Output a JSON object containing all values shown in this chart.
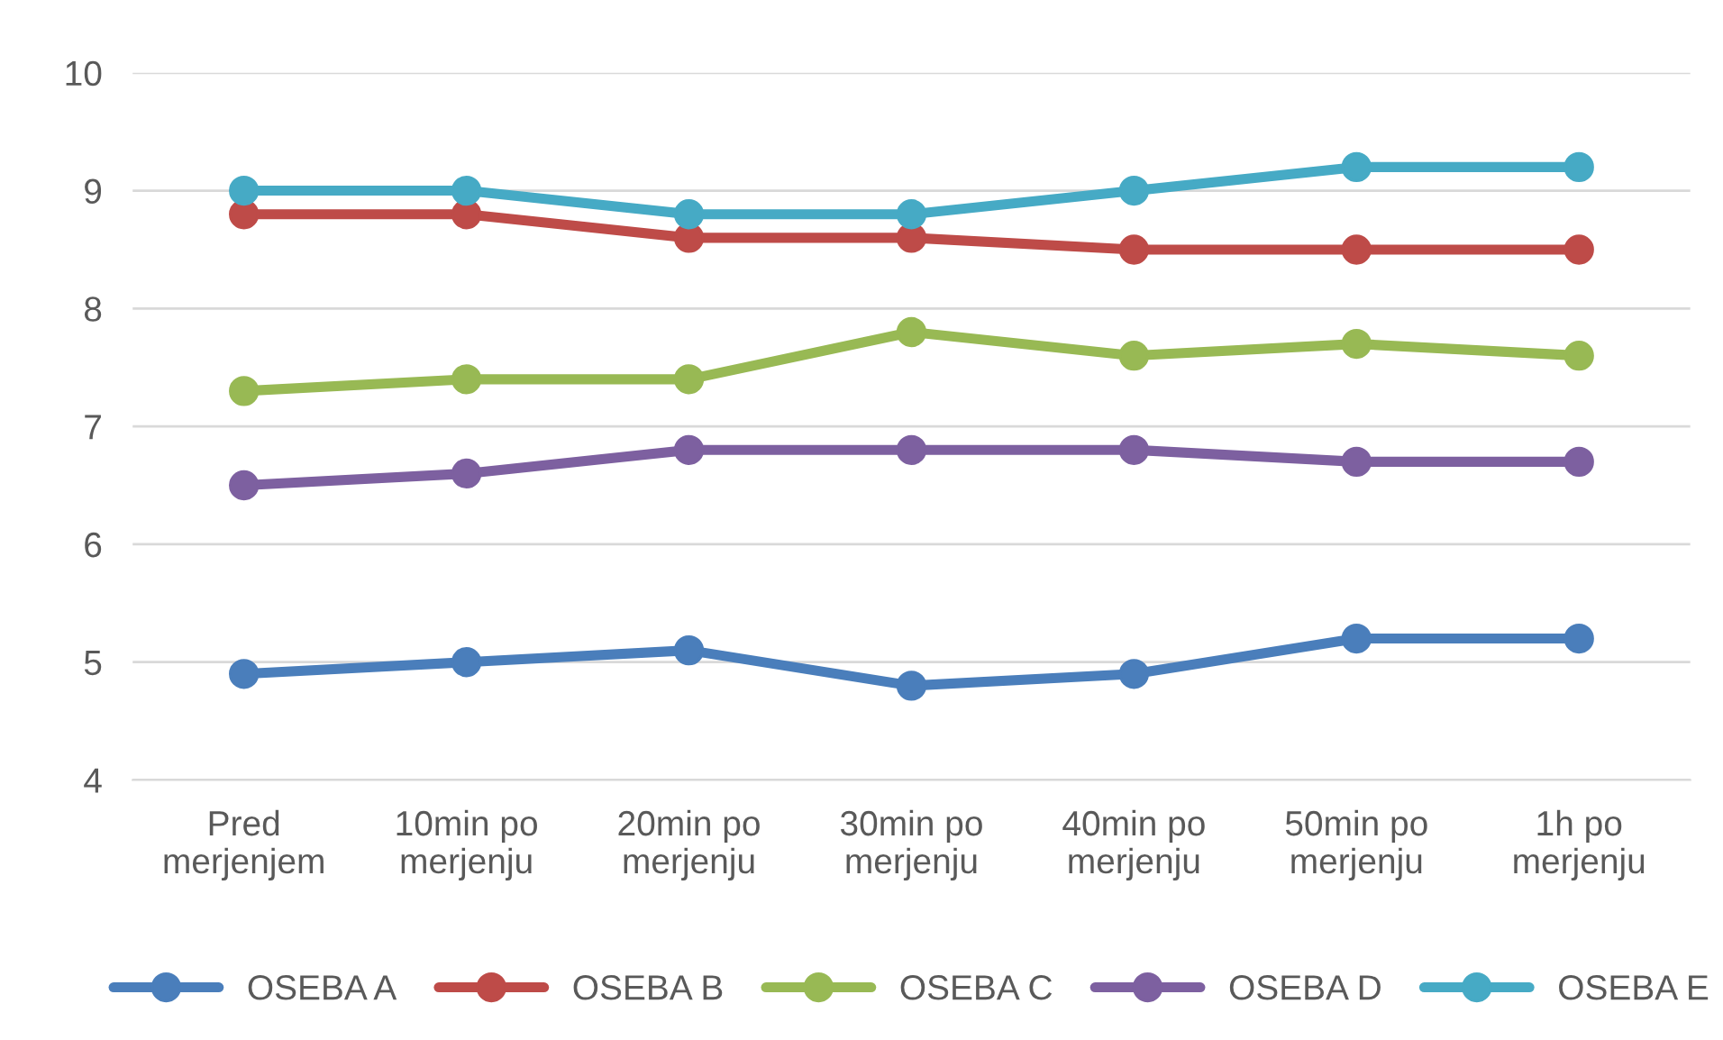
{
  "chart_data": {
    "type": "line",
    "categories": [
      "Pred\nmerjenjem",
      "10min po\nmerjenju",
      "20min po\nmerjenju",
      "30min po\nmerjenju",
      "40min po\nmerjenju",
      "50min po\nmerjenju",
      "1h po\nmerjenju"
    ],
    "series": [
      {
        "name": "OSEBA A",
        "color": "#4a7ebb",
        "values": [
          4.9,
          5.0,
          5.1,
          4.8,
          4.9,
          5.2,
          5.2
        ]
      },
      {
        "name": "OSEBA B",
        "color": "#be4b48",
        "values": [
          8.8,
          8.8,
          8.6,
          8.6,
          8.5,
          8.5,
          8.5
        ]
      },
      {
        "name": "OSEBA C",
        "color": "#98b954",
        "values": [
          7.3,
          7.4,
          7.4,
          7.8,
          7.6,
          7.7,
          7.6
        ]
      },
      {
        "name": "OSEBA D",
        "color": "#7d60a0",
        "values": [
          6.5,
          6.6,
          6.8,
          6.8,
          6.8,
          6.7,
          6.7
        ]
      },
      {
        "name": "OSEBA E",
        "color": "#46aac5",
        "values": [
          9.0,
          9.0,
          8.8,
          8.8,
          9.0,
          9.2,
          9.2
        ]
      }
    ],
    "ylim": [
      4,
      10
    ],
    "yticks": [
      4,
      5,
      6,
      7,
      8,
      9,
      10
    ],
    "grid": "y",
    "legend": "bottom",
    "marker": "circle",
    "line_style": "solid"
  }
}
